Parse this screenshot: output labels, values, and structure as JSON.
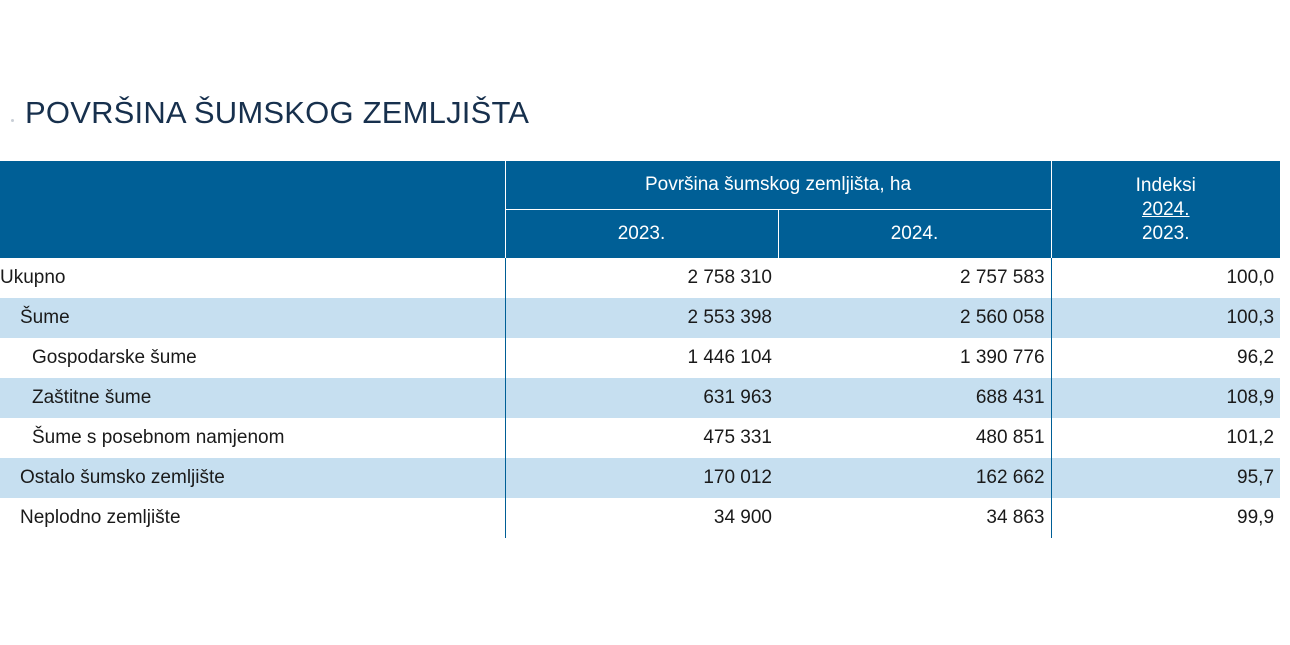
{
  "title": "POVRŠINA ŠUMSKOG ZEMLJIŠTA",
  "header": {
    "group_label": "Površina šumskog zemljišta, ha",
    "year_2023": "2023.",
    "year_2024": "2024.",
    "index_label": "Indeksi",
    "index_numerator": "2024.",
    "index_denominator": "2023."
  },
  "rows": [
    {
      "label": "Ukupno",
      "v2023": "2 758 310",
      "v2024": "2 757 583",
      "index": "100,0"
    },
    {
      "label": "Šume",
      "v2023": "2 553 398",
      "v2024": "2 560 058",
      "index": "100,3"
    },
    {
      "label": "Gospodarske šume",
      "v2023": "1 446 104",
      "v2024": "1 390 776",
      "index": "96,2"
    },
    {
      "label": "Zaštitne šume",
      "v2023": "631 963",
      "v2024": "688 431",
      "index": "108,9"
    },
    {
      "label": "Šume s posebnom namjenom",
      "v2023": "475 331",
      "v2024": "480 851",
      "index": "101,2"
    },
    {
      "label": "Ostalo šumsko zemljište",
      "v2023": "170 012",
      "v2024": "162 662",
      "index": "95,7"
    },
    {
      "label": "Neplodno zemljište",
      "v2023": "34 900",
      "v2024": "34 863",
      "index": "99,9"
    }
  ]
}
